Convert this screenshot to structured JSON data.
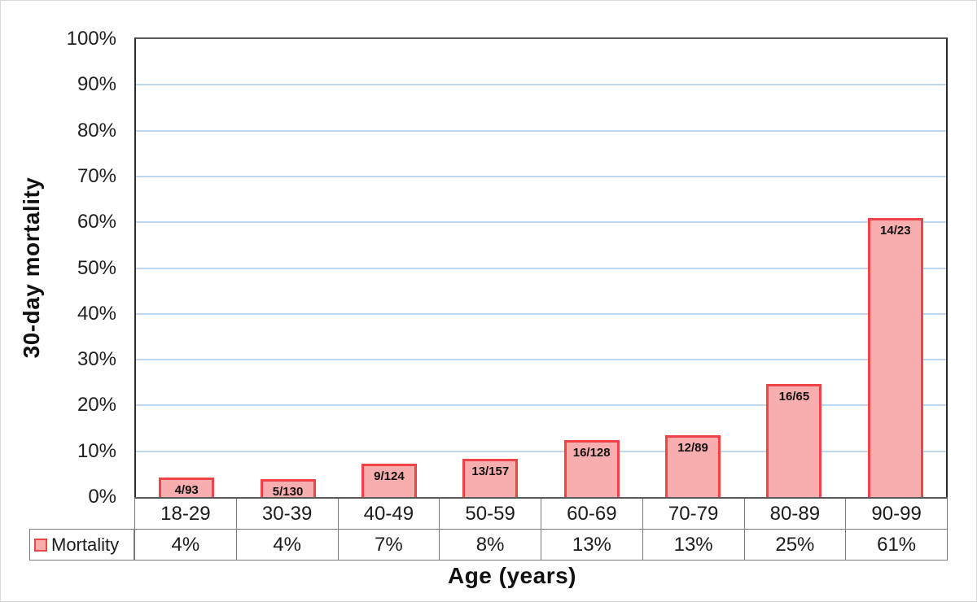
{
  "chart_data": {
    "type": "bar",
    "title": "",
    "xlabel": "Age (years)",
    "ylabel": "30-day mortality",
    "ylim": [
      0,
      100
    ],
    "y_tick_labels": [
      "100%",
      "90%",
      "80%",
      "70%",
      "60%",
      "50%",
      "40%",
      "30%",
      "20%",
      "10%",
      "0%"
    ],
    "grid": "horizontal",
    "legend_position": "table-left",
    "categories": [
      "18-29",
      "30-39",
      "40-49",
      "50-59",
      "60-69",
      "70-79",
      "80-89",
      "90-99"
    ],
    "series": [
      {
        "name": "Mortality",
        "values_pct": [
          4,
          4,
          7,
          8,
          13,
          13,
          25,
          61
        ],
        "table_labels": [
          "4%",
          "4%",
          "7%",
          "8%",
          "13%",
          "13%",
          "25%",
          "61%"
        ],
        "bar_labels": [
          "4/93",
          "5/130",
          "9/124",
          "13/157",
          "16/128",
          "12/89",
          "16/65",
          "14/23"
        ],
        "deaths": [
          4,
          5,
          9,
          13,
          16,
          12,
          16,
          14
        ],
        "totals": [
          93,
          130,
          124,
          157,
          128,
          89,
          65,
          23
        ]
      }
    ],
    "colors": {
      "bar_fill": "#f8aeae",
      "bar_border": "#f04348",
      "gridline": "#bdd7ee",
      "plot_border": "#595959",
      "table_border": "#7a7a7a"
    }
  }
}
